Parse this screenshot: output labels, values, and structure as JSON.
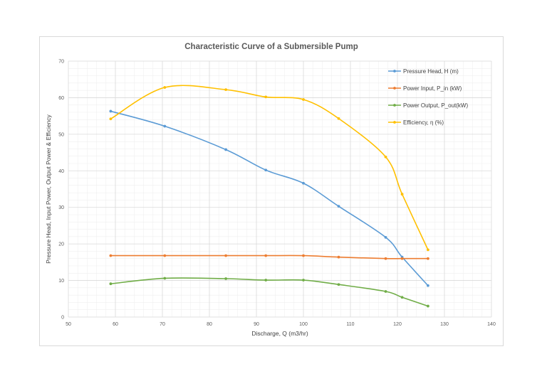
{
  "chart_data": {
    "type": "line",
    "title": "Characteristic Curve of a Submersible Pump",
    "xlabel": "Discharge, Q (m3/hr)",
    "ylabel": "Pressure Head, Input Power, Output Power & Efficiency",
    "xlim": [
      50,
      140
    ],
    "ylim": [
      0,
      70
    ],
    "x_ticks": [
      "50",
      "60",
      "70",
      "80",
      "90",
      "100",
      "110",
      "120",
      "130",
      "140"
    ],
    "y_ticks": [
      "0",
      "10",
      "20",
      "30",
      "40",
      "50",
      "60",
      "70"
    ],
    "grid": true,
    "minor_grid": true,
    "smooth": true,
    "legend_position": "top-right",
    "x": [
      59,
      70.5,
      83.5,
      92,
      100,
      107.5,
      117.5,
      121,
      126.5
    ],
    "series": [
      {
        "name": "Pressure Head, H (m)",
        "color": "#5b9bd5",
        "values": [
          56.3,
          52.2,
          45.8,
          40.2,
          36.6,
          30.3,
          21.8,
          16.4,
          8.6
        ]
      },
      {
        "name": "Power Input, P_in (kW)",
        "color": "#ed7d31",
        "values": [
          16.8,
          16.8,
          16.8,
          16.8,
          16.8,
          16.4,
          16.0,
          16.0,
          16.0
        ]
      },
      {
        "name": "Power Output, P_out(kW)",
        "color": "#70ad47",
        "values": [
          9.1,
          10.6,
          10.5,
          10.1,
          10.1,
          8.9,
          7.0,
          5.4,
          3.0
        ]
      },
      {
        "name": "Efficiency, η (%)",
        "color": "#ffc000",
        "values": [
          54.2,
          62.8,
          62.2,
          60.2,
          59.5,
          54.3,
          43.8,
          33.6,
          18.4
        ]
      }
    ]
  }
}
